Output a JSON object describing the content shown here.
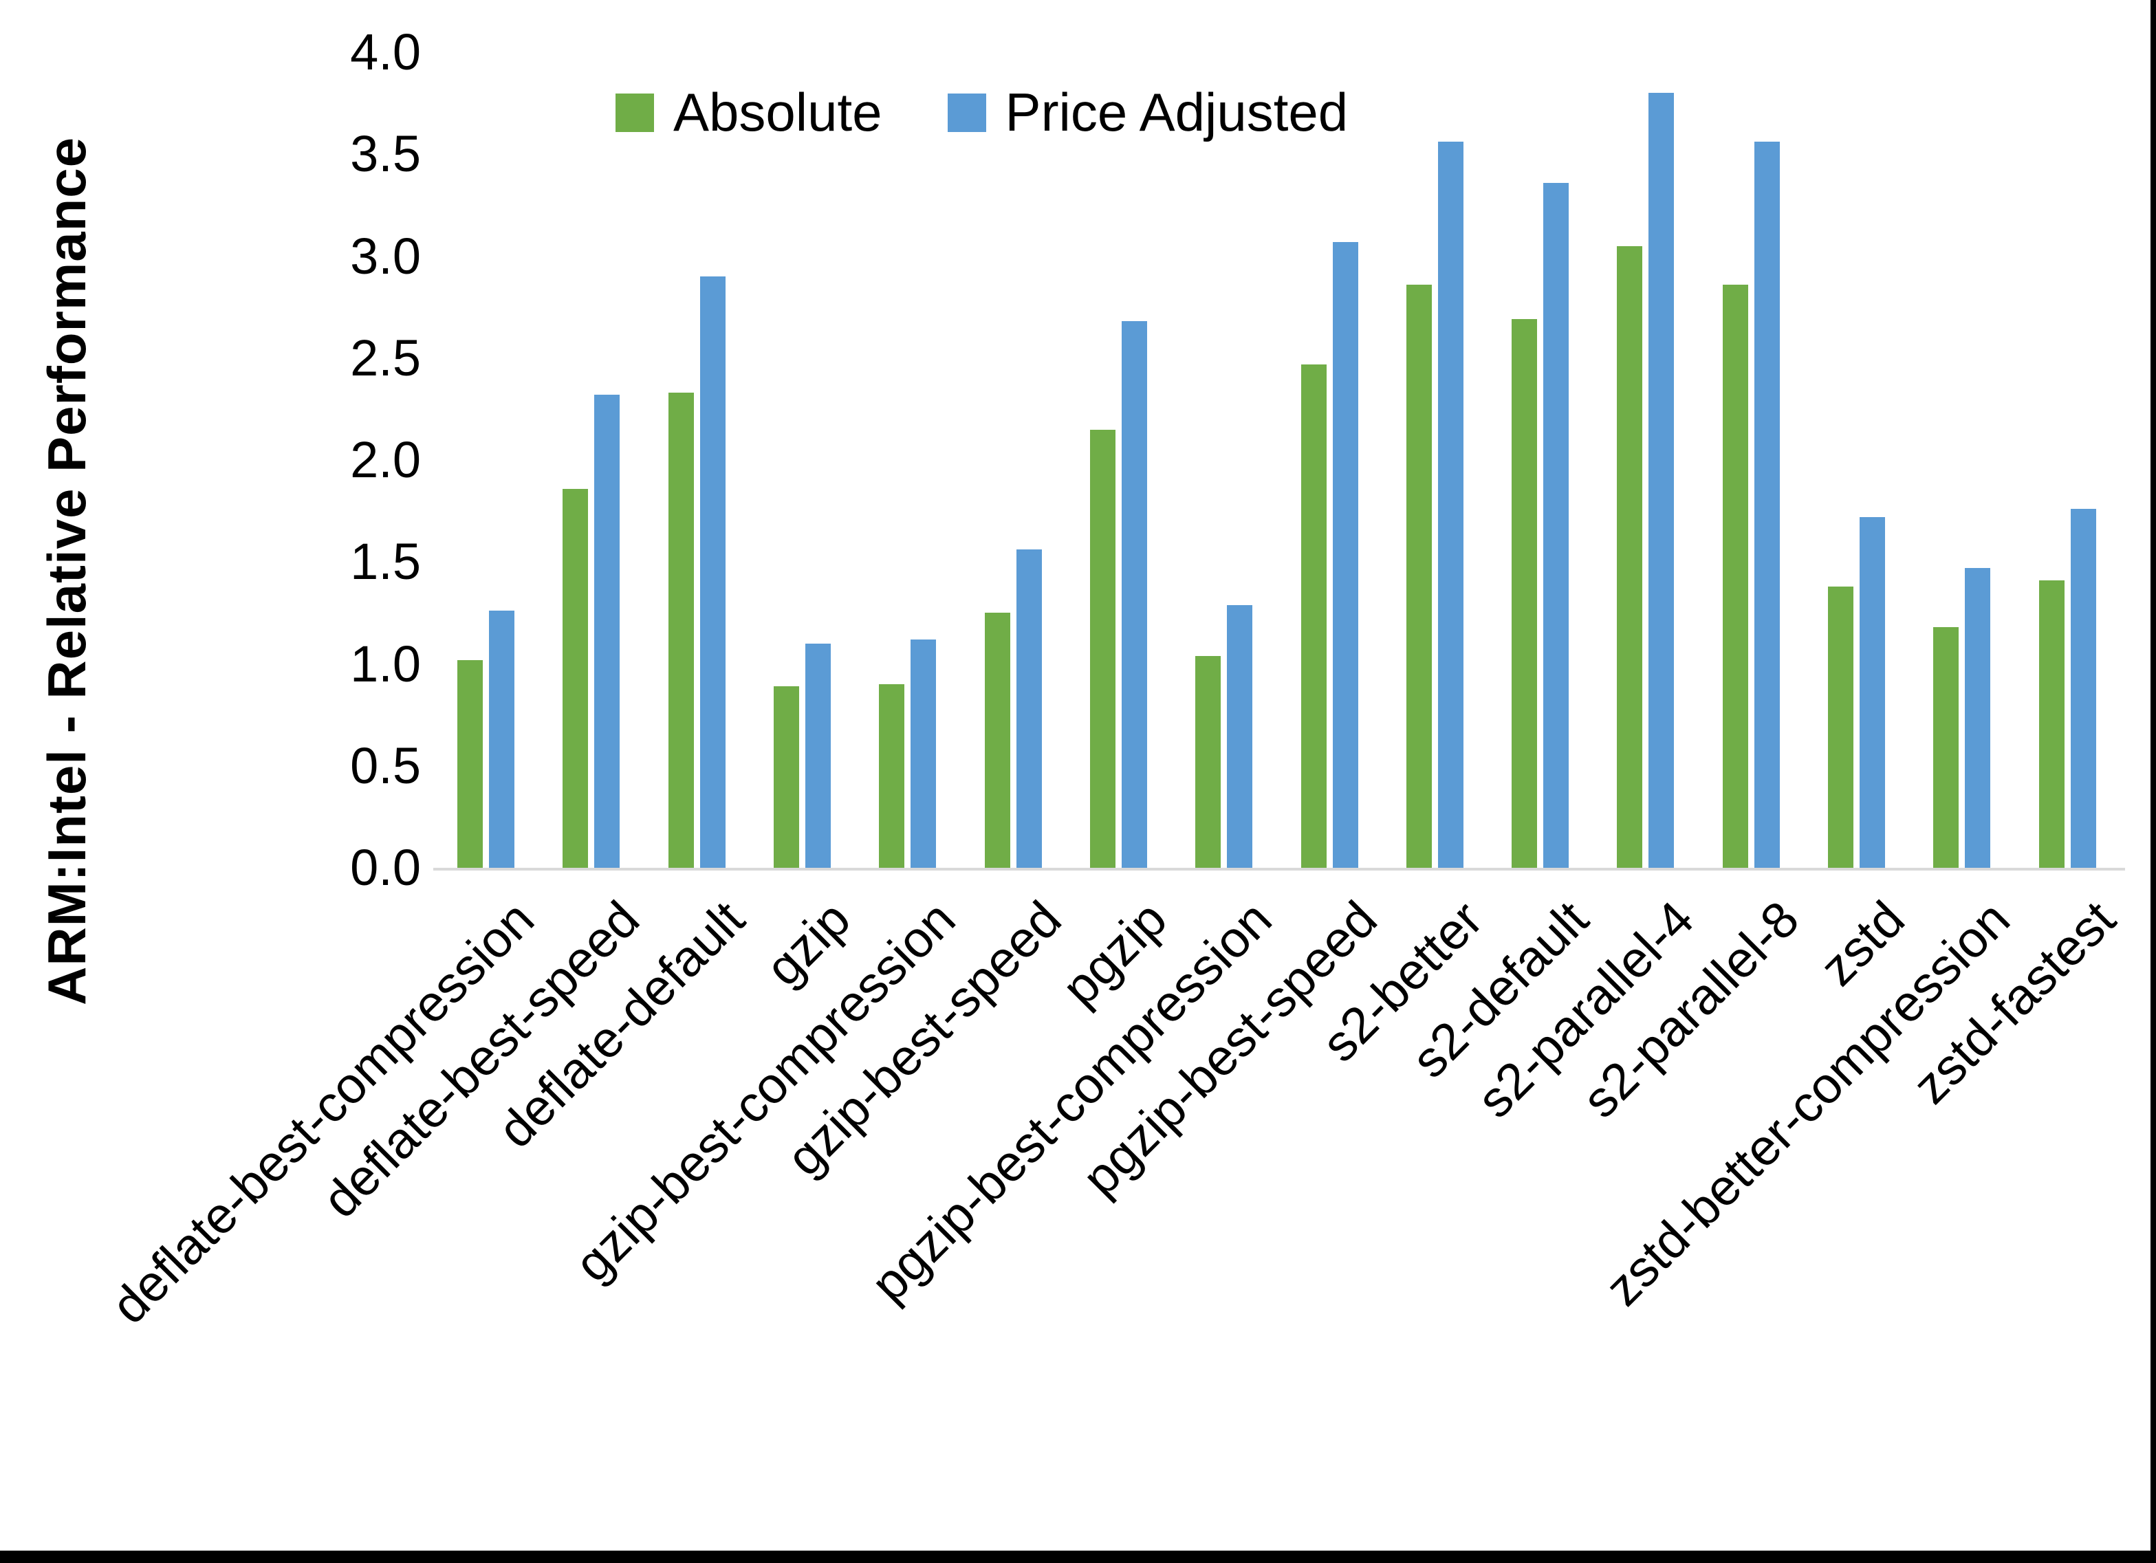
{
  "y_axis": {
    "label": "ARM:Intel - Relative Performance"
  },
  "legend": {
    "items": [
      {
        "label": "Absolute",
        "color": "#70AD47"
      },
      {
        "label": "Price Adjusted",
        "color": "#5B9BD5"
      }
    ]
  },
  "colors": {
    "absolute": "#70AD47",
    "price_adjusted": "#5B9BD5",
    "axis_line": "#D9D9D9",
    "text": "#000000",
    "frame": "#000000"
  },
  "chart_data": {
    "type": "bar",
    "title": "",
    "xlabel": "",
    "ylabel": "ARM:Intel - Relative Performance",
    "ylim": [
      0.0,
      4.0
    ],
    "ytick_step": 0.5,
    "yticks": [
      "0.0",
      "0.5",
      "1.0",
      "1.5",
      "2.0",
      "2.5",
      "3.0",
      "3.5",
      "4.0"
    ],
    "grid": false,
    "legend_position": "top-center",
    "categories": [
      "deflate-best-compression",
      "deflate-best-speed",
      "deflate-default",
      "gzip",
      "gzip-best-compression",
      "gzip-best-speed",
      "pgzip",
      "pgzip-best-compression",
      "pgzip-best-speed",
      "s2-better",
      "s2-default",
      "s2-parallel-4",
      "s2-parallel-8",
      "zstd",
      "zstd-better-compression",
      "zstd-fastest"
    ],
    "series": [
      {
        "name": "Absolute",
        "color": "#70AD47",
        "values": [
          1.02,
          1.86,
          2.33,
          0.89,
          0.9,
          1.25,
          2.15,
          1.04,
          2.47,
          2.86,
          2.69,
          3.05,
          2.86,
          1.38,
          1.18,
          1.41
        ]
      },
      {
        "name": "Price Adjusted",
        "color": "#5B9BD5",
        "values": [
          1.26,
          2.32,
          2.9,
          1.1,
          1.12,
          1.56,
          2.68,
          1.29,
          3.07,
          3.56,
          3.36,
          3.8,
          3.56,
          1.72,
          1.47,
          1.76
        ]
      }
    ]
  }
}
